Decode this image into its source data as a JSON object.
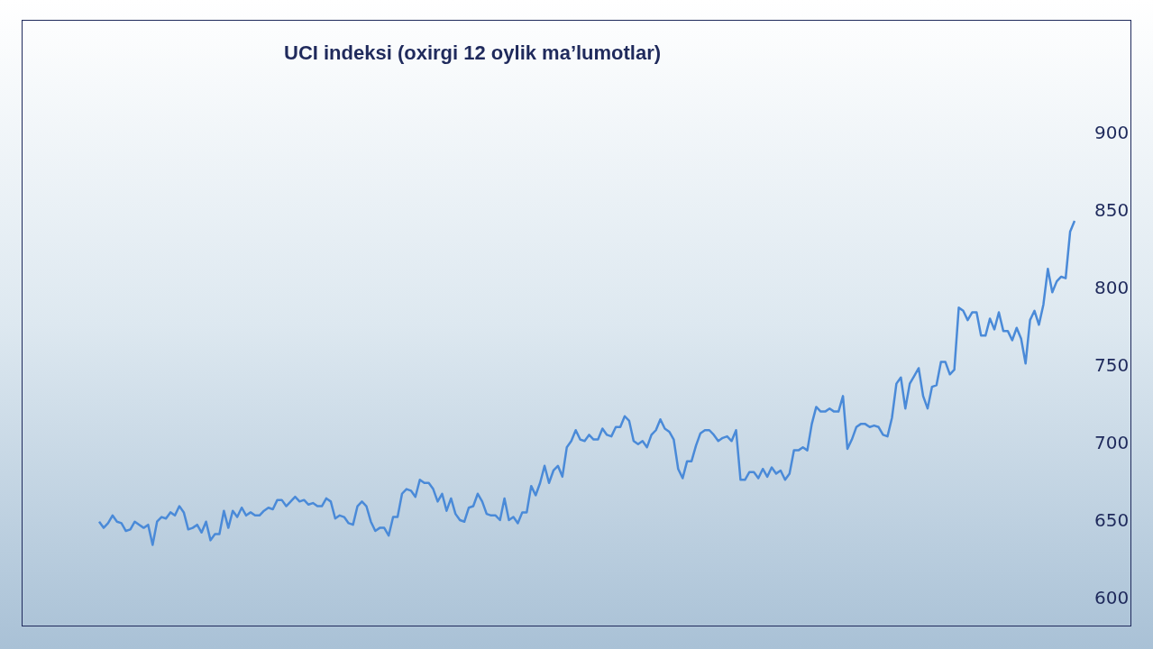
{
  "chart_data": {
    "type": "line",
    "title": "UCI indeksi (oxirgi 12 oylik ma’lumotlar)",
    "categories": [
      null,
      null,
      null,
      null,
      null,
      null,
      null,
      null,
      null,
      null,
      null,
      null,
      null,
      null,
      null,
      null,
      null,
      null,
      null,
      null,
      null,
      null,
      null,
      null,
      null,
      null,
      null,
      null,
      null,
      null,
      null,
      null,
      null,
      null,
      null,
      null,
      null,
      null,
      null,
      null,
      null,
      null,
      null,
      null,
      null,
      null,
      null,
      null,
      null,
      null,
      null,
      null,
      null,
      null,
      null,
      null,
      null,
      null,
      null,
      null,
      null,
      null,
      null,
      null,
      null,
      null,
      null,
      null,
      null,
      null,
      null,
      null,
      null,
      null,
      null,
      null,
      null,
      null,
      null,
      null,
      null,
      null,
      null,
      null,
      null,
      null,
      null,
      null,
      null,
      null,
      null,
      null,
      null,
      null,
      null,
      null,
      null,
      null,
      null,
      null,
      null,
      null,
      null,
      null,
      null,
      null,
      null,
      null,
      null,
      null,
      null,
      null,
      null,
      null,
      null,
      null,
      null,
      null,
      null,
      null,
      null,
      null,
      null,
      null,
      null,
      null,
      null,
      null,
      null,
      null,
      null,
      null,
      null,
      null,
      null,
      null,
      null,
      null,
      null,
      null,
      null,
      null,
      null,
      null,
      null,
      null,
      null,
      null,
      null,
      null,
      null,
      null,
      null,
      null,
      null,
      null,
      null,
      null,
      null,
      null,
      null,
      null,
      null,
      null,
      null,
      null,
      null,
      null,
      null,
      null,
      null,
      null,
      null,
      null,
      null,
      null,
      null,
      null,
      null,
      null,
      null,
      null,
      null,
      null,
      null,
      null,
      null,
      null,
      null,
      null,
      null,
      null,
      null,
      null,
      null,
      null,
      null,
      null,
      null,
      null,
      null,
      null,
      null,
      null,
      null,
      null,
      null,
      null,
      null,
      null,
      null,
      null,
      null,
      null,
      null,
      null,
      null,
      null,
      null,
      null
    ],
    "series": [
      {
        "color": "#4a8ad8",
        "values": [
          649,
          645,
          648,
          653,
          649,
          648,
          643,
          644,
          649,
          647,
          645,
          647,
          634,
          649,
          652,
          651,
          655,
          653,
          659,
          655,
          644,
          645,
          647,
          642,
          649,
          637,
          641,
          641,
          656,
          645,
          656,
          652,
          658,
          653,
          655,
          653,
          653,
          656,
          658,
          657,
          663,
          663,
          659,
          662,
          665,
          662,
          663,
          660,
          661,
          659,
          659,
          664,
          662,
          651,
          653,
          652,
          648,
          647,
          659,
          662,
          659,
          649,
          643,
          645,
          645,
          640,
          652,
          652,
          667,
          670,
          669,
          665,
          676,
          674,
          674,
          670,
          662,
          667,
          656,
          664,
          654,
          650,
          649,
          658,
          659,
          667,
          662,
          654,
          653,
          653,
          650,
          664,
          650,
          652,
          648,
          655,
          655,
          672,
          666,
          674,
          685,
          674,
          682,
          685,
          678,
          697,
          701,
          708,
          702,
          701,
          705,
          702,
          702,
          709,
          705,
          704,
          710,
          710,
          717,
          714,
          701,
          699,
          701,
          697,
          705,
          708,
          715,
          709,
          707,
          702,
          683,
          677,
          688,
          688,
          698,
          706,
          708,
          708,
          705,
          701,
          703,
          704,
          701,
          708,
          676,
          676,
          681,
          681,
          677,
          683,
          678,
          684,
          680,
          682,
          676,
          680,
          695,
          695,
          697,
          695,
          712,
          723,
          720,
          720,
          722,
          720,
          720,
          730,
          696,
          702,
          710,
          712,
          712,
          710,
          711,
          710,
          705,
          704,
          716,
          738,
          742,
          722,
          738,
          743,
          748,
          730,
          722,
          736,
          737,
          752,
          752,
          744,
          747,
          787,
          785,
          779,
          784,
          784,
          769,
          769,
          780,
          773,
          784,
          772,
          772,
          766,
          774,
          767,
          751,
          779,
          785,
          776,
          789,
          812,
          797,
          804,
          807,
          806,
          836,
          843
        ]
      }
    ],
    "ylim": [
      600,
      900
    ],
    "yticks": [
      600,
      650,
      700,
      750,
      800,
      850,
      900
    ],
    "tick_labels": "y",
    "marker": "none",
    "line_style": "solid"
  }
}
